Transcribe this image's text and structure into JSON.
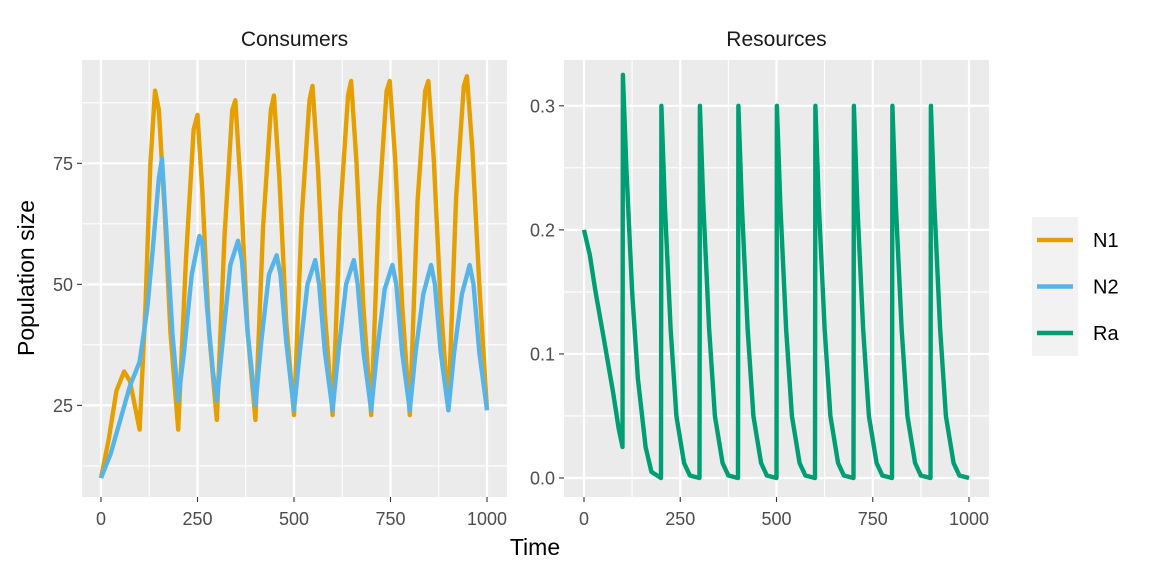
{
  "chart_data": {
    "type": "line",
    "xlabel": "Time",
    "legend": {
      "placement": "right",
      "entries": [
        {
          "name": "N1",
          "color": "#E69F00"
        },
        {
          "name": "N2",
          "color": "#56B4E9"
        },
        {
          "name": "Ra",
          "color": "#009E73"
        }
      ]
    },
    "panels": [
      {
        "title": "Consumers",
        "ylabel": "Population size",
        "xlim": [
          0,
          1000
        ],
        "ylim": [
          10,
          92
        ],
        "x_ticks": [
          0,
          250,
          500,
          750,
          1000
        ],
        "y_ticks": [
          25,
          50,
          75
        ],
        "grid": true,
        "series": [
          {
            "name": "N1",
            "color": "#E69F00",
            "points": [
              [
                0,
                10
              ],
              [
                20,
                18
              ],
              [
                40,
                28
              ],
              [
                60,
                32
              ],
              [
                75,
                30
              ],
              [
                90,
                24
              ],
              [
                100,
                20
              ],
              [
                115,
                45
              ],
              [
                128,
                75
              ],
              [
                140,
                90
              ],
              [
                150,
                86
              ],
              [
                165,
                65
              ],
              [
                180,
                40
              ],
              [
                200,
                20
              ],
              [
                220,
                55
              ],
              [
                240,
                82
              ],
              [
                250,
                85
              ],
              [
                262,
                70
              ],
              [
                280,
                40
              ],
              [
                300,
                22
              ],
              [
                320,
                60
              ],
              [
                340,
                86
              ],
              [
                348,
                88
              ],
              [
                362,
                70
              ],
              [
                380,
                40
              ],
              [
                400,
                22
              ],
              [
                420,
                62
              ],
              [
                440,
                86
              ],
              [
                448,
                89
              ],
              [
                462,
                72
              ],
              [
                480,
                42
              ],
              [
                500,
                23
              ],
              [
                520,
                64
              ],
              [
                540,
                88
              ],
              [
                548,
                91
              ],
              [
                562,
                74
              ],
              [
                580,
                44
              ],
              [
                600,
                23
              ],
              [
                620,
                65
              ],
              [
                640,
                89
              ],
              [
                648,
                92
              ],
              [
                662,
                75
              ],
              [
                680,
                45
              ],
              [
                700,
                23
              ],
              [
                720,
                66
              ],
              [
                740,
                90
              ],
              [
                748,
                92
              ],
              [
                762,
                76
              ],
              [
                780,
                46
              ],
              [
                800,
                23
              ],
              [
                820,
                67
              ],
              [
                840,
                90
              ],
              [
                848,
                92
              ],
              [
                862,
                76
              ],
              [
                880,
                46
              ],
              [
                900,
                24
              ],
              [
                920,
                68
              ],
              [
                940,
                91
              ],
              [
                948,
                93
              ],
              [
                962,
                78
              ],
              [
                980,
                50
              ],
              [
                1000,
                24
              ]
            ]
          },
          {
            "name": "N2",
            "color": "#56B4E9",
            "points": [
              [
                0,
                10
              ],
              [
                25,
                15
              ],
              [
                50,
                22
              ],
              [
                75,
                29
              ],
              [
                100,
                34
              ],
              [
                120,
                45
              ],
              [
                135,
                58
              ],
              [
                150,
                72
              ],
              [
                158,
                76
              ],
              [
                170,
                60
              ],
              [
                185,
                40
              ],
              [
                200,
                26
              ],
              [
                215,
                36
              ],
              [
                235,
                52
              ],
              [
                255,
                60
              ],
              [
                262,
                59
              ],
              [
                275,
                45
              ],
              [
                290,
                32
              ],
              [
                300,
                26
              ],
              [
                315,
                38
              ],
              [
                335,
                54
              ],
              [
                355,
                59
              ],
              [
                365,
                55
              ],
              [
                380,
                40
              ],
              [
                400,
                25
              ],
              [
                415,
                38
              ],
              [
                435,
                52
              ],
              [
                455,
                56
              ],
              [
                465,
                52
              ],
              [
                480,
                38
              ],
              [
                500,
                24
              ],
              [
                515,
                36
              ],
              [
                535,
                50
              ],
              [
                555,
                55
              ],
              [
                565,
                50
              ],
              [
                580,
                36
              ],
              [
                600,
                24
              ],
              [
                615,
                36
              ],
              [
                635,
                50
              ],
              [
                655,
                55
              ],
              [
                665,
                50
              ],
              [
                680,
                36
              ],
              [
                700,
                24
              ],
              [
                715,
                36
              ],
              [
                735,
                49
              ],
              [
                755,
                54
              ],
              [
                765,
                50
              ],
              [
                780,
                36
              ],
              [
                800,
                24
              ],
              [
                815,
                36
              ],
              [
                835,
                48
              ],
              [
                855,
                54
              ],
              [
                865,
                50
              ],
              [
                880,
                36
              ],
              [
                900,
                24
              ],
              [
                915,
                36
              ],
              [
                935,
                48
              ],
              [
                955,
                54
              ],
              [
                965,
                50
              ],
              [
                980,
                36
              ],
              [
                1000,
                24
              ]
            ]
          }
        ]
      },
      {
        "title": "Resources",
        "ylabel": "",
        "xlim": [
          0,
          1000
        ],
        "ylim": [
          0,
          0.32
        ],
        "x_ticks": [
          0,
          250,
          500,
          750,
          1000
        ],
        "y_ticks": [
          0.0,
          0.1,
          0.2,
          0.3
        ],
        "y_tick_labels": [
          "0.0",
          "0.1",
          "0.2",
          "0.3"
        ],
        "grid": true,
        "series": [
          {
            "name": "Ra",
            "color": "#009E73",
            "points": [
              [
                0,
                0.2
              ],
              [
                15,
                0.18
              ],
              [
                30,
                0.15
              ],
              [
                50,
                0.115
              ],
              [
                75,
                0.07
              ],
              [
                90,
                0.04
              ],
              [
                100,
                0.025
              ],
              [
                101,
                0.325
              ],
              [
                110,
                0.25
              ],
              [
                125,
                0.15
              ],
              [
                140,
                0.08
              ],
              [
                160,
                0.025
              ],
              [
                175,
                0.005
              ],
              [
                200,
                0.0
              ],
              [
                201,
                0.3
              ],
              [
                210,
                0.22
              ],
              [
                225,
                0.12
              ],
              [
                240,
                0.05
              ],
              [
                260,
                0.012
              ],
              [
                275,
                0.002
              ],
              [
                300,
                0.0
              ],
              [
                301,
                0.3
              ],
              [
                310,
                0.22
              ],
              [
                325,
                0.12
              ],
              [
                340,
                0.05
              ],
              [
                360,
                0.012
              ],
              [
                375,
                0.002
              ],
              [
                400,
                0.0
              ],
              [
                401,
                0.3
              ],
              [
                410,
                0.22
              ],
              [
                425,
                0.12
              ],
              [
                440,
                0.05
              ],
              [
                460,
                0.012
              ],
              [
                475,
                0.002
              ],
              [
                500,
                0.0
              ],
              [
                501,
                0.3
              ],
              [
                510,
                0.22
              ],
              [
                525,
                0.12
              ],
              [
                540,
                0.05
              ],
              [
                560,
                0.012
              ],
              [
                575,
                0.002
              ],
              [
                600,
                0.0
              ],
              [
                601,
                0.3
              ],
              [
                610,
                0.22
              ],
              [
                625,
                0.12
              ],
              [
                640,
                0.05
              ],
              [
                660,
                0.012
              ],
              [
                675,
                0.002
              ],
              [
                700,
                0.0
              ],
              [
                701,
                0.3
              ],
              [
                710,
                0.22
              ],
              [
                725,
                0.12
              ],
              [
                740,
                0.05
              ],
              [
                760,
                0.012
              ],
              [
                775,
                0.002
              ],
              [
                800,
                0.0
              ],
              [
                801,
                0.3
              ],
              [
                810,
                0.22
              ],
              [
                825,
                0.12
              ],
              [
                840,
                0.05
              ],
              [
                860,
                0.012
              ],
              [
                875,
                0.002
              ],
              [
                900,
                0.0
              ],
              [
                901,
                0.3
              ],
              [
                910,
                0.22
              ],
              [
                925,
                0.12
              ],
              [
                940,
                0.05
              ],
              [
                960,
                0.012
              ],
              [
                975,
                0.002
              ],
              [
                1000,
                0.0
              ]
            ]
          }
        ]
      }
    ]
  }
}
